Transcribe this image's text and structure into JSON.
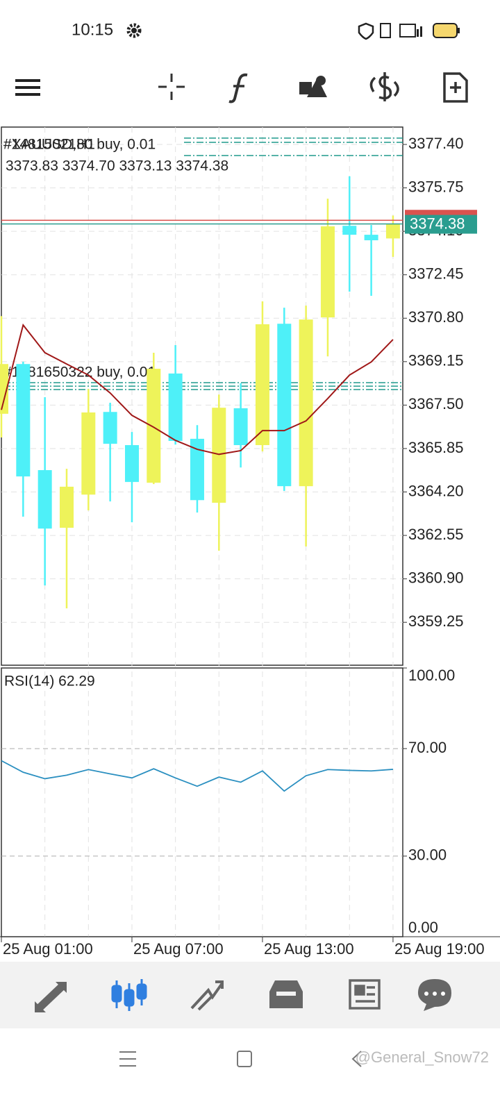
{
  "status_bar": {
    "time": "10:15"
  },
  "chart_data": {
    "type": "candlestick",
    "title": "#XAUUSD,H1",
    "ohlc_label": "3373.83 3374.70 3373.13 3374.38",
    "categories": [
      "25 Aug 01:00",
      null,
      null,
      null,
      null,
      null,
      "25 Aug 07:00",
      null,
      null,
      null,
      null,
      null,
      "25 Aug 13:00",
      null,
      null,
      null,
      null,
      null,
      "25 Aug 19:00"
    ],
    "open": [
      3367.17,
      3369.06,
      3365.03,
      3362.84,
      3364.1,
      3367.24,
      3365.98,
      3364.55,
      3368.7,
      3366.22,
      3363.79,
      3367.38,
      3365.98,
      3370.59,
      3364.42,
      3370.83,
      3374.31,
      3373.97,
      3373.83
    ],
    "high": [
      3370.88,
      3369.15,
      3367.8,
      3365.08,
      3368.11,
      3367.59,
      3366.48,
      3369.49,
      3369.78,
      3366.74,
      3367.9,
      3368.33,
      3371.44,
      3371.2,
      3371.28,
      3375.34,
      3376.19,
      3374.34,
      3374.7
    ],
    "low": [
      3366.27,
      3363.26,
      3360.65,
      3359.78,
      3363.5,
      3363.84,
      3363.05,
      3364.5,
      3366.0,
      3363.42,
      3361.97,
      3365.13,
      3365.74,
      3364.24,
      3362.13,
      3369.35,
      3371.81,
      3371.65,
      3373.13
    ],
    "close": [
      3369.06,
      3364.79,
      3362.81,
      3364.4,
      3367.22,
      3366.03,
      3364.58,
      3368.88,
      3366.14,
      3363.89,
      3367.4,
      3365.98,
      3370.57,
      3364.42,
      3370.75,
      3374.29,
      3373.97,
      3373.76,
      3374.38
    ],
    "up_color": "#eef35a",
    "down_color": "#4ef0f8",
    "moving_average": {
      "color": "#a01818",
      "values": [
        3367.32,
        3370.54,
        3369.49,
        3369.06,
        3368.64,
        3367.96,
        3367.11,
        3366.66,
        3366.16,
        3365.82,
        3365.63,
        3365.77,
        3366.53,
        3366.53,
        3366.9,
        3367.75,
        3368.64,
        3369.14,
        3369.99
      ]
    },
    "ylim": [
      3357.62,
      3378.06
    ],
    "yticks": [
      {
        "value": 3377.4,
        "label": "3377.40"
      },
      {
        "value": 3375.75,
        "label": "3375.75"
      },
      {
        "value": 3374.1,
        "label": "3374.10"
      },
      {
        "value": 3372.45,
        "label": "3372.45"
      },
      {
        "value": 3370.8,
        "label": "3370.80"
      },
      {
        "value": 3369.15,
        "label": "3369.15"
      },
      {
        "value": 3367.5,
        "label": "3367.50"
      },
      {
        "value": 3365.85,
        "label": "3365.85"
      },
      {
        "value": 3364.2,
        "label": "3364.20"
      },
      {
        "value": 3362.55,
        "label": "3362.55"
      },
      {
        "value": 3360.9,
        "label": "3360.90"
      },
      {
        "value": 3359.25,
        "label": "3359.25"
      }
    ],
    "grid": true,
    "last_price": 3374.38,
    "last_price_color": "#2a9d8f",
    "ask_price": 3374.52,
    "ask_color": "#d9534f",
    "orders": [
      {
        "label": "#1481502180 buy, 0.01",
        "levels": [
          3377.64,
          3377.48,
          3376.98
        ]
      },
      {
        "label": "#1481650322 buy, 0.01",
        "levels": [
          3368.35,
          3368.22,
          3368.09
        ]
      }
    ],
    "order_color": "#1f9a8c",
    "indicator": {
      "title": "RSI(14) 62.29",
      "color": "#2a8fc0",
      "values": [
        65.5,
        61.2,
        58.8,
        60.1,
        62.2,
        60.6,
        59.1,
        62.5,
        59.1,
        56.0,
        59.4,
        57.5,
        61.7,
        54.2,
        59.9,
        62.2,
        61.9,
        61.7,
        62.29
      ],
      "ylim": [
        0,
        100
      ],
      "yticks": [
        {
          "value": 100,
          "label": "100.00"
        },
        {
          "value": 70,
          "label": "70.00"
        },
        {
          "value": 30,
          "label": "30.00"
        },
        {
          "value": 0,
          "label": "0.00"
        }
      ]
    }
  },
  "watermark": "@General_Snow72"
}
